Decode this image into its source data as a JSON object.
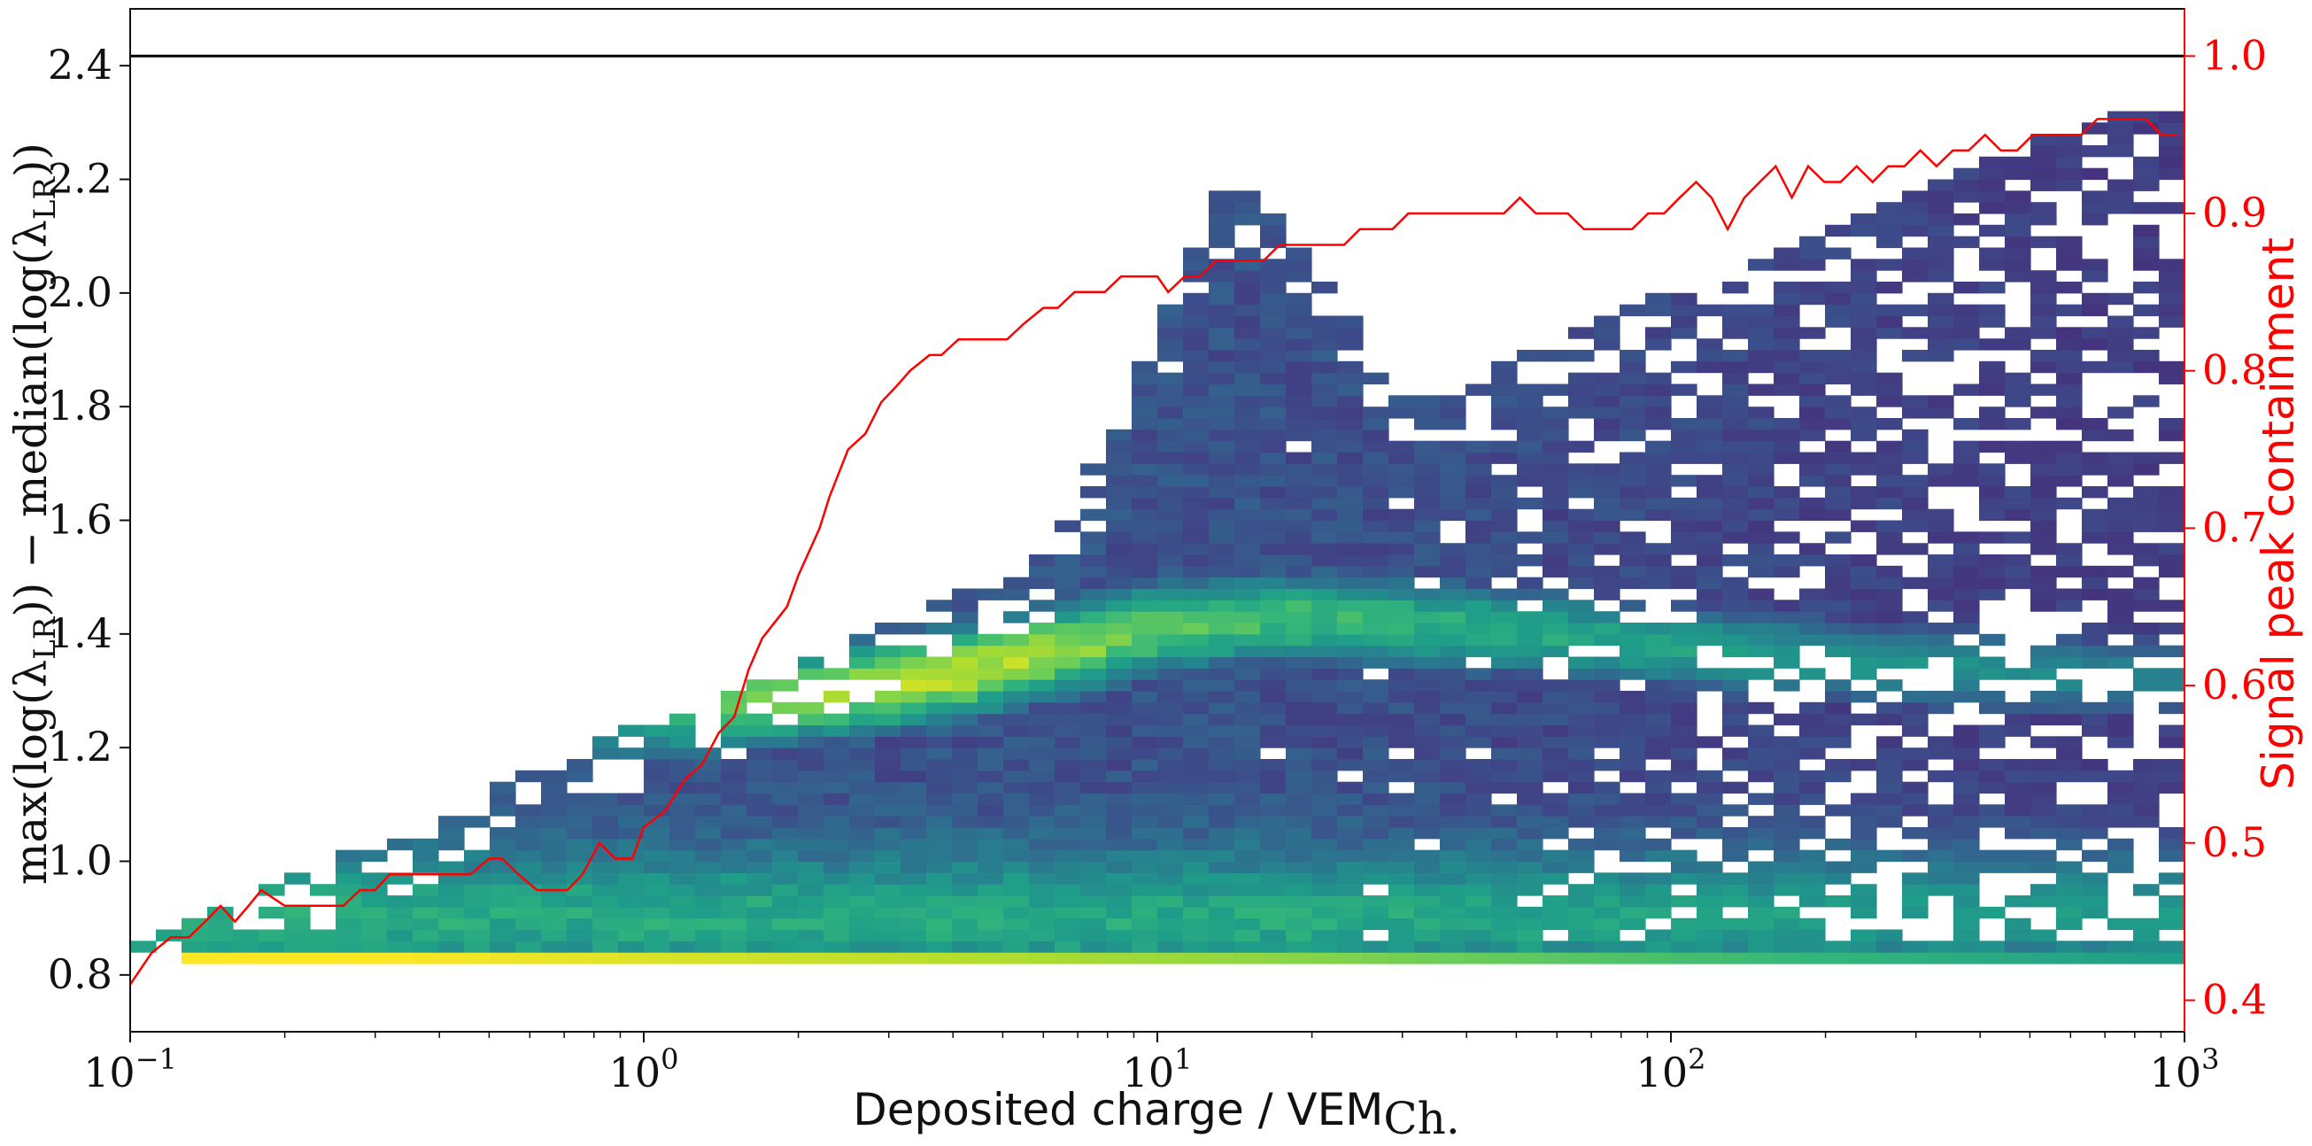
{
  "chart_data": {
    "type": "heatmap",
    "title": "",
    "xlabel": "Deposited charge / VEM",
    "xlabel_subscript": "Ch.",
    "ylabel_left": "max(log(λ",
    "ylabel_left_sub": "LR",
    "ylabel_left_mid": ")) − median(log(λ",
    "ylabel_left_sub2": "LR",
    "ylabel_left_end": "))",
    "ylabel_right": "Signal peak containment",
    "x_scale": "log",
    "xlim": [
      0.1,
      1000
    ],
    "ylim_left": [
      0.7,
      2.5
    ],
    "ylim_right": [
      0.38,
      1.03
    ],
    "x_ticks": [
      {
        "value": 0.1,
        "base": "10",
        "exp": "−1"
      },
      {
        "value": 1,
        "base": "10",
        "exp": "0"
      },
      {
        "value": 10,
        "base": "10",
        "exp": "1"
      },
      {
        "value": 100,
        "base": "10",
        "exp": "2"
      },
      {
        "value": 1000,
        "base": "10",
        "exp": "3"
      }
    ],
    "y_ticks_left": [
      "0.8",
      "1.0",
      "1.2",
      "1.4",
      "1.6",
      "1.8",
      "2.0",
      "2.2",
      "2.4"
    ],
    "y_ticks_right": [
      "0.4",
      "0.5",
      "0.6",
      "0.7",
      "0.8",
      "0.9",
      "1.0"
    ],
    "reference_line": {
      "axis": "right",
      "y": 1.0,
      "color": "#000000"
    },
    "colormap": "viridis",
    "grid": false,
    "heatmap": {
      "x_bins_log10": [
        -1,
        3,
        80
      ],
      "y_bins": [
        0.82,
        2.32,
        75
      ],
      "ridges": [
        {
          "x": [
            -1.0,
            -0.5,
            0.0,
            0.5,
            1.0,
            1.5,
            2.0,
            2.5,
            3.0
          ],
          "y": [
            0.83,
            0.83,
            0.83,
            0.83,
            0.83,
            0.83,
            0.83,
            0.83,
            0.83
          ],
          "weight": [
            1.0,
            1.0,
            0.95,
            0.9,
            0.85,
            0.8,
            0.75,
            0.7,
            0.65
          ]
        },
        {
          "x": [
            0.0,
            0.2,
            0.4,
            0.6,
            0.8,
            1.0,
            1.2,
            1.5,
            2.0,
            2.5,
            3.0
          ],
          "y": [
            1.24,
            1.28,
            1.3,
            1.33,
            1.37,
            1.41,
            1.43,
            1.42,
            1.38,
            1.34,
            1.32
          ],
          "weight": [
            0.5,
            0.75,
            0.85,
            0.9,
            0.85,
            0.75,
            0.7,
            0.65,
            0.6,
            0.55,
            0.5
          ]
        }
      ]
    },
    "series": [
      {
        "name": "Signal peak containment",
        "axis": "right",
        "color": "#ff0000",
        "x": [
          0.1,
          0.11,
          0.12,
          0.13,
          0.14,
          0.15,
          0.16,
          0.17,
          0.18,
          0.2,
          0.21,
          0.22,
          0.24,
          0.26,
          0.28,
          0.3,
          0.32,
          0.35,
          0.37,
          0.4,
          0.43,
          0.46,
          0.5,
          0.53,
          0.57,
          0.62,
          0.66,
          0.71,
          0.76,
          0.82,
          0.88,
          0.95,
          1.0,
          1.1,
          1.2,
          1.3,
          1.4,
          1.5,
          1.6,
          1.7,
          1.9,
          2.0,
          2.2,
          2.3,
          2.5,
          2.7,
          2.9,
          3.1,
          3.3,
          3.6,
          3.8,
          4.1,
          4.5,
          4.8,
          5.1,
          5.5,
          6.0,
          6.4,
          6.9,
          7.4,
          7.9,
          8.5,
          9.2,
          10,
          10.5,
          11.3,
          12.1,
          13,
          14,
          15,
          16.1,
          17.3,
          18.6,
          20,
          21.5,
          23.1,
          24.8,
          26.7,
          28.7,
          30.8,
          33,
          35.5,
          38.2,
          41,
          44,
          47.3,
          50.8,
          54.6,
          58.7,
          63,
          67.7,
          72.8,
          78.2,
          84,
          90.3,
          97,
          104,
          112,
          120,
          129,
          139,
          149,
          160,
          172,
          185,
          199,
          214,
          230,
          247,
          265,
          285,
          306,
          329,
          354,
          380,
          409,
          439,
          472,
          507,
          545,
          586,
          630,
          677,
          727,
          782,
          840,
          903,
          970
        ],
        "values": [
          0.41,
          0.43,
          0.44,
          0.44,
          0.45,
          0.46,
          0.45,
          0.46,
          0.47,
          0.46,
          0.46,
          0.46,
          0.46,
          0.46,
          0.47,
          0.47,
          0.48,
          0.48,
          0.48,
          0.48,
          0.48,
          0.48,
          0.49,
          0.49,
          0.48,
          0.47,
          0.47,
          0.47,
          0.48,
          0.5,
          0.49,
          0.49,
          0.51,
          0.52,
          0.54,
          0.55,
          0.57,
          0.58,
          0.61,
          0.63,
          0.65,
          0.67,
          0.7,
          0.72,
          0.75,
          0.76,
          0.78,
          0.79,
          0.8,
          0.81,
          0.81,
          0.82,
          0.82,
          0.82,
          0.82,
          0.83,
          0.84,
          0.84,
          0.85,
          0.85,
          0.85,
          0.86,
          0.86,
          0.86,
          0.85,
          0.86,
          0.86,
          0.87,
          0.87,
          0.87,
          0.87,
          0.88,
          0.88,
          0.88,
          0.88,
          0.88,
          0.89,
          0.89,
          0.89,
          0.9,
          0.9,
          0.9,
          0.9,
          0.9,
          0.9,
          0.9,
          0.91,
          0.9,
          0.9,
          0.9,
          0.89,
          0.89,
          0.89,
          0.89,
          0.9,
          0.9,
          0.91,
          0.92,
          0.91,
          0.89,
          0.91,
          0.92,
          0.93,
          0.91,
          0.93,
          0.92,
          0.92,
          0.93,
          0.92,
          0.93,
          0.93,
          0.94,
          0.93,
          0.94,
          0.94,
          0.95,
          0.94,
          0.94,
          0.95,
          0.95,
          0.95,
          0.95,
          0.96,
          0.96,
          0.96,
          0.96,
          0.95,
          0.95
        ]
      }
    ]
  }
}
